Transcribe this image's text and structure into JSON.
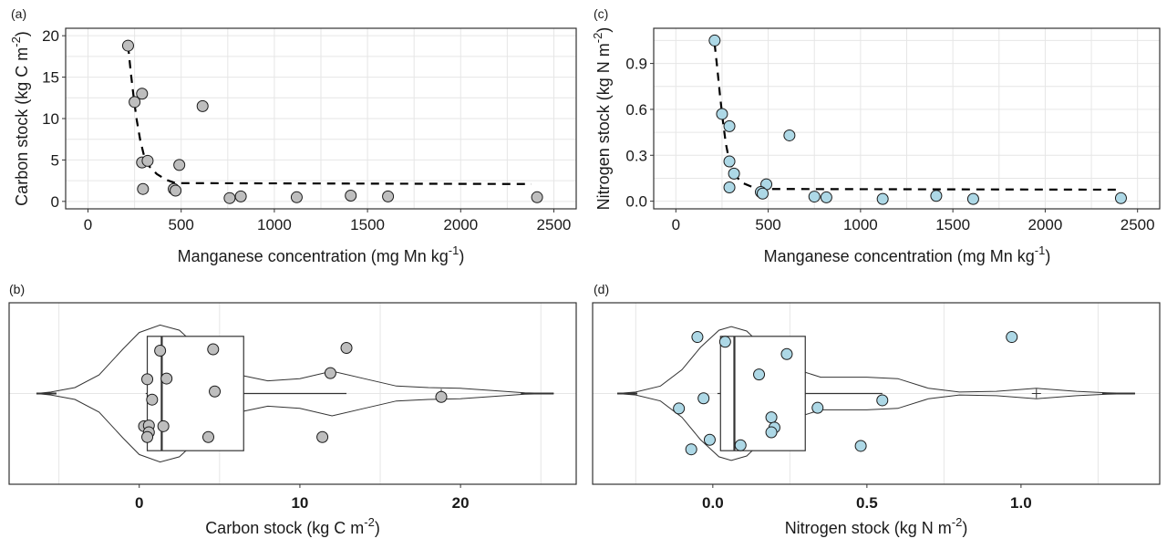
{
  "figure": {
    "panels": [
      "a",
      "b",
      "c",
      "d"
    ]
  },
  "colors": {
    "carbon_point": "#bebebe",
    "nitrogen_point": "#add8e6",
    "grid": "#e6e6e6",
    "frame": "#333333"
  },
  "chart_data": [
    {
      "id": "a",
      "tag": "(a)",
      "type": "scatter",
      "xlabel": "Manganese concentration (mg Mn kg",
      "xlabel_sup": "-1",
      "xlabel_tail": ")",
      "ylabel": "Carbon stock (kg C m",
      "ylabel_sup": "-2",
      "ylabel_tail": ")",
      "xlim": [
        -120,
        2620
      ],
      "ylim": [
        -0.9,
        20.9
      ],
      "xticks": [
        0,
        500,
        1000,
        1500,
        2000,
        2500
      ],
      "xtick_labels": [
        "0",
        "500",
        "1000",
        "1500",
        "2000",
        "2500"
      ],
      "yticks": [
        0,
        5,
        10,
        15,
        20
      ],
      "ytick_labels": [
        "0",
        "5",
        "10",
        "15",
        "20"
      ],
      "grid": true,
      "points": [
        {
          "x": 215,
          "y": 18.8
        },
        {
          "x": 290,
          "y": 13.0
        },
        {
          "x": 250,
          "y": 12.0
        },
        {
          "x": 615,
          "y": 11.5
        },
        {
          "x": 290,
          "y": 4.7
        },
        {
          "x": 320,
          "y": 4.9
        },
        {
          "x": 490,
          "y": 4.4
        },
        {
          "x": 295,
          "y": 1.5
        },
        {
          "x": 460,
          "y": 1.5
        },
        {
          "x": 470,
          "y": 1.3
        },
        {
          "x": 760,
          "y": 0.4
        },
        {
          "x": 820,
          "y": 0.6
        },
        {
          "x": 1120,
          "y": 0.5
        },
        {
          "x": 1410,
          "y": 0.7
        },
        {
          "x": 1610,
          "y": 0.6
        },
        {
          "x": 2410,
          "y": 0.5
        }
      ],
      "fit_line": [
        {
          "x": 215,
          "y": 18.8
        },
        {
          "x": 230,
          "y": 15.5
        },
        {
          "x": 245,
          "y": 12.6
        },
        {
          "x": 260,
          "y": 10.0
        },
        {
          "x": 280,
          "y": 7.4
        },
        {
          "x": 300,
          "y": 5.6
        },
        {
          "x": 330,
          "y": 4.2
        },
        {
          "x": 370,
          "y": 3.3
        },
        {
          "x": 420,
          "y": 2.6
        },
        {
          "x": 470,
          "y": 2.2
        },
        {
          "x": 2380,
          "y": 2.1
        }
      ]
    },
    {
      "id": "c",
      "tag": "(c)",
      "type": "scatter",
      "xlabel": "Manganese concentration (mg Mn kg",
      "xlabel_sup": "-1",
      "xlabel_tail": ")",
      "ylabel": "Nitrogen stock (kg N m",
      "ylabel_sup": "-2",
      "ylabel_tail": ")",
      "xlim": [
        -120,
        2620
      ],
      "ylim": [
        -0.05,
        1.13
      ],
      "xticks": [
        0,
        500,
        1000,
        1500,
        2000,
        2500
      ],
      "xtick_labels": [
        "0",
        "500",
        "1000",
        "1500",
        "2000",
        "2500"
      ],
      "yticks": [
        0.0,
        0.3,
        0.6,
        0.9
      ],
      "ytick_labels": [
        "0.0",
        "0.3",
        "0.6",
        "0.9"
      ],
      "grid": true,
      "points": [
        {
          "x": 210,
          "y": 1.05
        },
        {
          "x": 250,
          "y": 0.57
        },
        {
          "x": 290,
          "y": 0.49
        },
        {
          "x": 615,
          "y": 0.43
        },
        {
          "x": 290,
          "y": 0.26
        },
        {
          "x": 315,
          "y": 0.18
        },
        {
          "x": 290,
          "y": 0.09
        },
        {
          "x": 490,
          "y": 0.11
        },
        {
          "x": 460,
          "y": 0.06
        },
        {
          "x": 470,
          "y": 0.05
        },
        {
          "x": 750,
          "y": 0.03
        },
        {
          "x": 815,
          "y": 0.025
        },
        {
          "x": 1120,
          "y": 0.015
        },
        {
          "x": 1410,
          "y": 0.035
        },
        {
          "x": 1610,
          "y": 0.015
        },
        {
          "x": 2410,
          "y": 0.02
        }
      ],
      "fit_line": [
        {
          "x": 210,
          "y": 1.03
        },
        {
          "x": 225,
          "y": 0.86
        },
        {
          "x": 240,
          "y": 0.68
        },
        {
          "x": 255,
          "y": 0.52
        },
        {
          "x": 270,
          "y": 0.38
        },
        {
          "x": 290,
          "y": 0.26
        },
        {
          "x": 320,
          "y": 0.17
        },
        {
          "x": 360,
          "y": 0.12
        },
        {
          "x": 420,
          "y": 0.09
        },
        {
          "x": 470,
          "y": 0.08
        },
        {
          "x": 2400,
          "y": 0.075
        }
      ]
    },
    {
      "id": "b",
      "tag": "(b)",
      "type": "violin-box",
      "xlabel": "Carbon stock (kg C m",
      "xlabel_sup": "-2",
      "xlabel_tail": ")",
      "xlim": [
        -8.1,
        27.2
      ],
      "xticks": [
        0,
        10,
        20
      ],
      "xtick_labels": [
        "0",
        "10",
        "20"
      ],
      "minor_gridlines": [
        -5,
        5,
        15,
        25
      ],
      "grid": true,
      "box": {
        "q1": 0.5,
        "median": 1.4,
        "q3": 6.5,
        "whisker_low": 0.4,
        "whisker_high": 12.9
      },
      "mean": 18.8,
      "violin_range": [
        -6.4,
        25.8
      ],
      "violin_profile": [
        {
          "x": -6.4,
          "w": 0.0
        },
        {
          "x": -5.5,
          "w": 0.02
        },
        {
          "x": -4,
          "w": 0.08
        },
        {
          "x": -2.5,
          "w": 0.25
        },
        {
          "x": -1,
          "w": 0.6
        },
        {
          "x": 0,
          "w": 0.82
        },
        {
          "x": 1.3,
          "w": 0.92
        },
        {
          "x": 2.5,
          "w": 0.85
        },
        {
          "x": 4,
          "w": 0.55
        },
        {
          "x": 6,
          "w": 0.26
        },
        {
          "x": 8,
          "w": 0.17
        },
        {
          "x": 10,
          "w": 0.2
        },
        {
          "x": 12,
          "w": 0.3
        },
        {
          "x": 14,
          "w": 0.2
        },
        {
          "x": 16,
          "w": 0.1
        },
        {
          "x": 18,
          "w": 0.08
        },
        {
          "x": 20,
          "w": 0.07
        },
        {
          "x": 22,
          "w": 0.04
        },
        {
          "x": 24,
          "w": 0.01
        },
        {
          "x": 25.8,
          "w": 0.0
        }
      ],
      "points": [
        {
          "x": 1.3,
          "j": 0.63
        },
        {
          "x": 4.6,
          "j": 0.65
        },
        {
          "x": 12.9,
          "j": 0.67
        },
        {
          "x": 11.9,
          "j": 0.3
        },
        {
          "x": 0.5,
          "j": 0.21
        },
        {
          "x": 1.7,
          "j": 0.22
        },
        {
          "x": 0.8,
          "j": -0.09
        },
        {
          "x": 4.7,
          "j": 0.03
        },
        {
          "x": 18.8,
          "j": -0.05
        },
        {
          "x": 0.3,
          "j": -0.48
        },
        {
          "x": 0.6,
          "j": -0.47
        },
        {
          "x": 1.5,
          "j": -0.48
        },
        {
          "x": 0.6,
          "j": -0.57
        },
        {
          "x": 0.5,
          "j": -0.64
        },
        {
          "x": 4.3,
          "j": -0.64
        },
        {
          "x": 11.4,
          "j": -0.64
        }
      ]
    },
    {
      "id": "d",
      "tag": "(d)",
      "type": "violin-box",
      "xlabel": "Nitrogen stock (kg N m",
      "xlabel_sup": "-2",
      "xlabel_tail": ")",
      "xlim": [
        -0.39,
        1.45
      ],
      "xticks": [
        0.0,
        0.5,
        1.0
      ],
      "xtick_labels": [
        "0.0",
        "0.5",
        "1.0"
      ],
      "minor_gridlines": [
        -0.25,
        0.25,
        0.75,
        1.25
      ],
      "grid": true,
      "box": {
        "q1": 0.025,
        "median": 0.07,
        "q3": 0.3,
        "whisker_low": 0.015,
        "whisker_high": 0.55
      },
      "mean": 1.05,
      "violin_range": [
        -0.31,
        1.37
      ],
      "violin_profile": [
        {
          "x": -0.31,
          "w": 0.0
        },
        {
          "x": -0.25,
          "w": 0.02
        },
        {
          "x": -0.17,
          "w": 0.1
        },
        {
          "x": -0.1,
          "w": 0.32
        },
        {
          "x": -0.04,
          "w": 0.62
        },
        {
          "x": 0.02,
          "w": 0.85
        },
        {
          "x": 0.06,
          "w": 0.9
        },
        {
          "x": 0.11,
          "w": 0.84
        },
        {
          "x": 0.17,
          "w": 0.6
        },
        {
          "x": 0.25,
          "w": 0.35
        },
        {
          "x": 0.35,
          "w": 0.22
        },
        {
          "x": 0.5,
          "w": 0.22
        },
        {
          "x": 0.6,
          "w": 0.2
        },
        {
          "x": 0.7,
          "w": 0.07
        },
        {
          "x": 0.8,
          "w": 0.02
        },
        {
          "x": 0.92,
          "w": 0.03
        },
        {
          "x": 1.05,
          "w": 0.07
        },
        {
          "x": 1.18,
          "w": 0.03
        },
        {
          "x": 1.28,
          "w": 0.01
        },
        {
          "x": 1.37,
          "w": 0.0
        }
      ],
      "points": [
        {
          "x": 0.97,
          "j": 0.83
        },
        {
          "x": -0.05,
          "j": 0.83
        },
        {
          "x": 0.04,
          "j": 0.76
        },
        {
          "x": 0.24,
          "j": 0.58
        },
        {
          "x": 0.15,
          "j": 0.28
        },
        {
          "x": -0.03,
          "j": -0.07
        },
        {
          "x": -0.11,
          "j": -0.22
        },
        {
          "x": 0.34,
          "j": -0.21
        },
        {
          "x": 0.55,
          "j": -0.1
        },
        {
          "x": 0.19,
          "j": -0.35
        },
        {
          "x": 0.2,
          "j": -0.5
        },
        {
          "x": 0.19,
          "j": -0.57
        },
        {
          "x": -0.01,
          "j": -0.68
        },
        {
          "x": -0.07,
          "j": -0.82
        },
        {
          "x": 0.09,
          "j": -0.76
        },
        {
          "x": 0.48,
          "j": -0.77
        }
      ]
    }
  ]
}
